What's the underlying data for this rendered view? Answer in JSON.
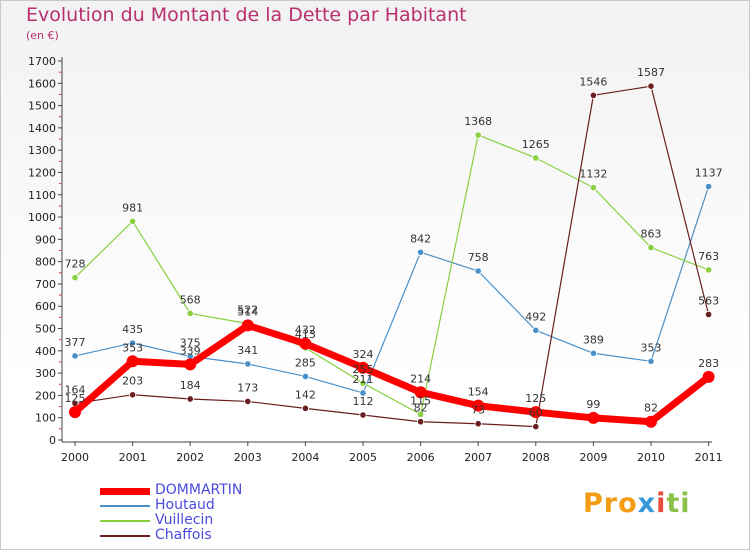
{
  "chart_data": {
    "type": "line",
    "title": "Evolution du Montant de la Dette par Habitant",
    "subtitle": "(en €)",
    "x": [
      "2000",
      "2001",
      "2002",
      "2003",
      "2004",
      "2005",
      "2006",
      "2007",
      "2008",
      "2009",
      "2010",
      "2011"
    ],
    "ylim": [
      0,
      1700
    ],
    "yticks": [
      0,
      100,
      200,
      300,
      400,
      500,
      600,
      700,
      800,
      900,
      1000,
      1100,
      1200,
      1300,
      1400,
      1500,
      1600,
      1700
    ],
    "grid": false,
    "legend_position": "bottom-left",
    "series": [
      {
        "name": "Houtaud",
        "color": "#4a90c8",
        "width": 1.2,
        "marker": 3.2,
        "values": [
          377,
          435,
          375,
          341,
          285,
          211,
          842,
          758,
          492,
          389,
          353,
          1137
        ]
      },
      {
        "name": "Vuillecin",
        "color": "#88d040",
        "width": 1.2,
        "marker": 3.2,
        "values": [
          728,
          981,
          568,
          522,
          413,
          255,
          115,
          1368,
          1265,
          1132,
          863,
          763
        ]
      },
      {
        "name": "Chaffois",
        "color": "#6b1e1e",
        "width": 1.2,
        "marker": 3.2,
        "values": [
          164,
          203,
          184,
          173,
          142,
          112,
          82,
          73,
          60,
          1546,
          1587,
          563
        ]
      },
      {
        "name": "DOMMARTIN",
        "color": "#ff0000",
        "width": 7,
        "marker": 6,
        "values": [
          125,
          353,
          339,
          514,
          432,
          324,
          214,
          154,
          125,
          99,
          82,
          283
        ]
      }
    ],
    "legend_order": [
      "DOMMARTIN",
      "Houtaud",
      "Vuillecin",
      "Chaffois"
    ]
  },
  "logo": {
    "p1": "Pro",
    "p2": "x",
    "p3": "i",
    "p4": "ti"
  }
}
